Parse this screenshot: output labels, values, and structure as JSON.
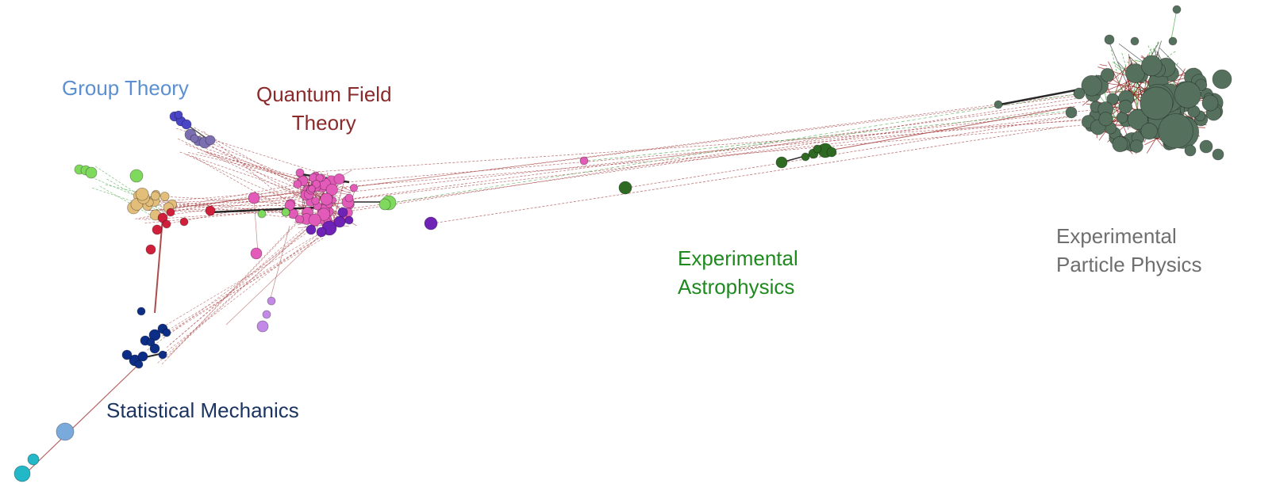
{
  "labels": {
    "group_theory": {
      "lines": [
        "Group Theory"
      ]
    },
    "quantum_field_theory": {
      "lines": [
        "Quantum Field",
        "Theory"
      ]
    },
    "experimental_astrophysics": {
      "lines": [
        "Experimental",
        "Astrophysics"
      ]
    },
    "experimental_particle_physics": {
      "lines": [
        "Experimental",
        "Particle Physics"
      ]
    },
    "statistical_mechanics": {
      "lines": [
        "Statistical Mechanics"
      ]
    }
  },
  "colors": {
    "group_theory_label": "#5b8fd0",
    "quantum_field_theory_label": "#8b2a2a",
    "experimental_astrophysics_label": "#1e8a1e",
    "experimental_particle_physics_label": "#6e6e6e",
    "statistical_mechanics_label": "#1b3462",
    "edge_between_clusters": "#a33a3a",
    "edge_green_dashed": "#4aa84a",
    "edge_strong": "#111111",
    "node_particle": "#56705e",
    "node_astro": "#2f6a22",
    "node_qft": "#e35bb8",
    "node_purple": "#6e22b6",
    "node_violet": "#c28ae6",
    "node_group": "#7b6fb1",
    "node_group_blue": "#4a44c6",
    "node_tan": "#e3be7b",
    "node_red": "#d01f3a",
    "node_light_green": "#7fd95d",
    "node_stat_mech": "#0d2e86",
    "node_light_blue": "#7aa9dc",
    "node_cyan": "#22b8c7"
  }
}
